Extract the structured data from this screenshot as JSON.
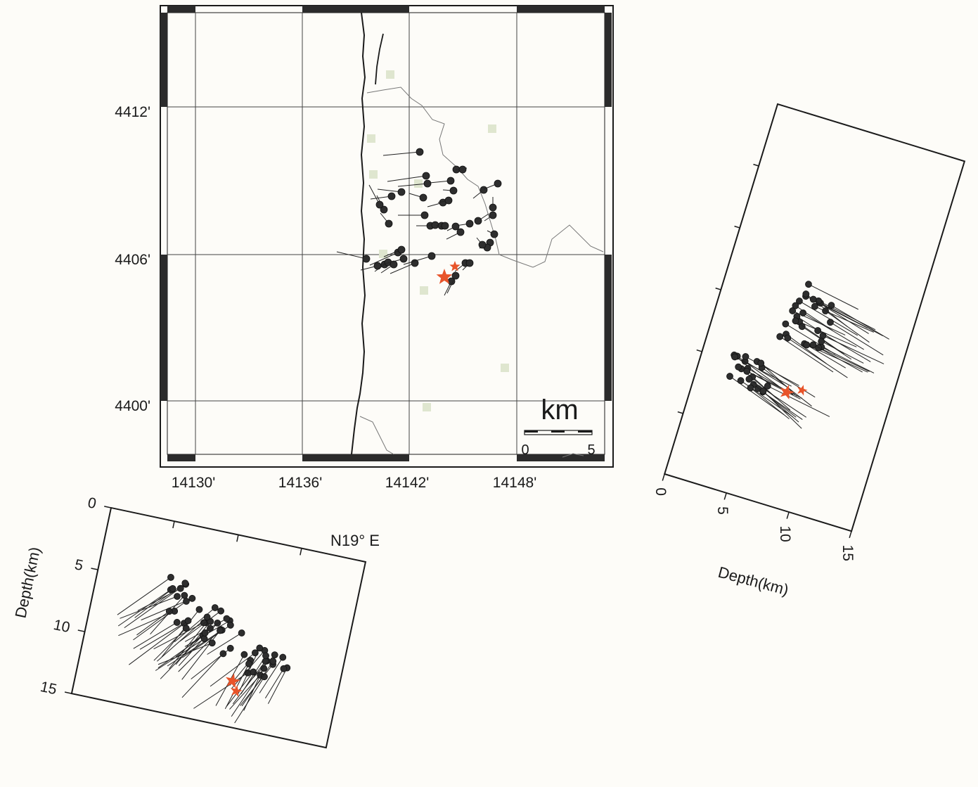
{
  "map": {
    "lat_labels": [
      "4412'",
      "4406'",
      "4400'"
    ],
    "lon_labels": [
      "14130'",
      "14136'",
      "14142'",
      "14148'"
    ],
    "scale": {
      "unit": "km",
      "left_label": "0",
      "right_label": "5"
    }
  },
  "section_left": {
    "direction_label": "N19°  E",
    "ylabel": "Depth(km)",
    "depth_ticks": [
      "0",
      "5",
      "10",
      "15"
    ]
  },
  "section_right": {
    "xlabel": "Depth(km)",
    "depth_ticks": [
      "0",
      "5",
      "10",
      "15"
    ]
  },
  "colors": {
    "event_dot": "#2e2e2e",
    "star": "#e8542a",
    "town_marker": "#dfe6cf",
    "frame": "#1a1a1a",
    "grid": "#444444"
  }
}
